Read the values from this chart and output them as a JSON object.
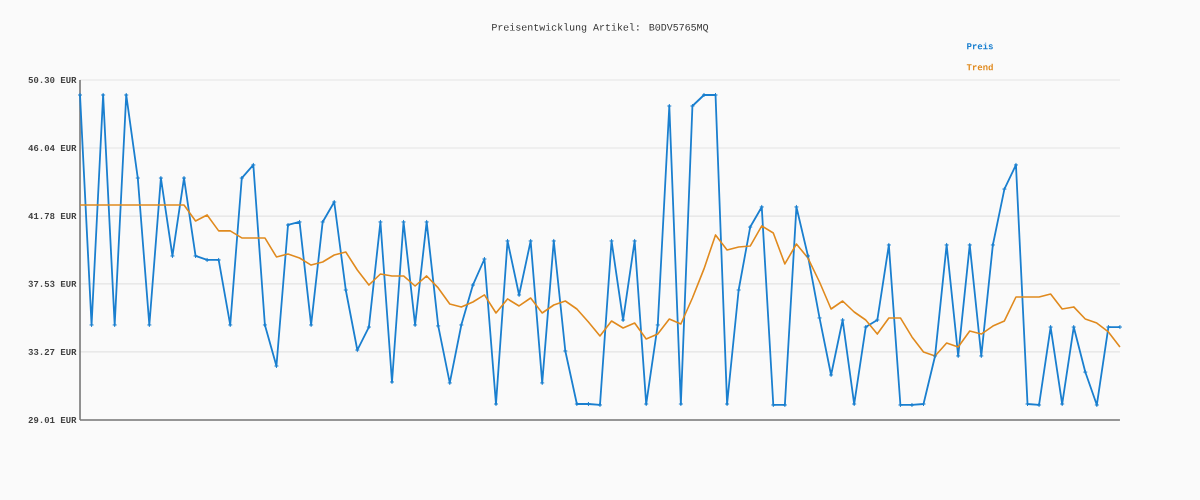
{
  "chart_data": {
    "type": "line",
    "title": "Preisentwicklung Artikel: B0DV5765MQ",
    "categories": [
      null,
      null,
      null,
      null,
      null,
      null,
      null,
      null,
      null,
      null,
      null,
      null,
      null,
      null,
      null,
      null,
      null,
      null,
      null,
      null,
      null,
      null,
      null,
      null,
      null,
      null,
      null,
      null,
      null,
      null,
      null,
      null,
      null,
      null,
      null,
      null,
      null,
      null,
      null,
      null,
      null,
      null,
      null,
      null,
      null,
      null,
      null,
      null,
      null,
      null,
      null,
      null,
      null,
      null,
      null,
      null,
      null,
      null,
      null,
      null,
      null,
      null,
      null,
      null,
      null,
      null,
      null,
      null,
      null,
      null,
      null,
      null,
      null,
      null,
      null,
      null,
      null,
      null,
      null,
      null,
      null,
      null,
      null,
      null,
      null,
      null,
      null,
      null,
      null,
      null,
      null
    ],
    "series": [
      {
        "name": "Preis",
        "color": "#1a7fcf",
        "marker": "cross",
        "values": [
          49.36,
          34.96,
          49.36,
          34.96,
          49.36,
          44.16,
          34.96,
          44.16,
          39.28,
          44.16,
          39.28,
          39.03,
          39.03,
          34.96,
          44.16,
          44.98,
          34.96,
          32.39,
          41.22,
          41.41,
          34.96,
          41.41,
          42.66,
          37.15,
          33.39,
          34.83,
          41.41,
          31.39,
          41.41,
          34.96,
          41.41,
          34.9,
          31.33,
          34.96,
          37.46,
          39.09,
          30.01,
          40.22,
          36.84,
          40.22,
          31.33,
          40.22,
          33.33,
          30.01,
          30.01,
          29.95,
          40.22,
          35.27,
          40.22,
          30.01,
          34.96,
          48.67,
          30.01,
          48.67,
          49.36,
          49.36,
          30.01,
          37.15,
          41.09,
          42.35,
          29.95,
          29.95,
          42.35,
          39.28,
          35.4,
          31.83,
          35.27,
          30.01,
          34.83,
          35.27,
          39.97,
          29.95,
          29.95,
          30.01,
          33.02,
          39.97,
          33.02,
          39.97,
          33.02,
          39.97,
          43.47,
          44.98,
          30.01,
          29.95,
          34.83,
          30.01,
          34.83,
          32.01,
          29.95,
          34.83,
          34.83
        ]
      },
      {
        "name": "Trend",
        "color": "#e08a1e",
        "marker": "none",
        "values": [
          42.47,
          42.47,
          42.47,
          42.47,
          42.47,
          42.47,
          42.47,
          42.47,
          42.47,
          42.47,
          41.47,
          41.85,
          40.85,
          40.85,
          40.41,
          40.41,
          40.41,
          39.22,
          39.4,
          39.15,
          38.71,
          38.9,
          39.34,
          39.53,
          38.4,
          37.46,
          38.15,
          38.03,
          38.03,
          37.4,
          38.03,
          37.28,
          36.27,
          36.09,
          36.4,
          36.84,
          35.71,
          36.59,
          36.15,
          36.65,
          35.71,
          36.21,
          36.46,
          35.96,
          35.15,
          34.27,
          35.21,
          34.77,
          35.08,
          34.08,
          34.39,
          35.33,
          35.02,
          36.65,
          38.47,
          40.6,
          39.65,
          39.84,
          39.9,
          41.16,
          40.72,
          38.78,
          40.03,
          39.15,
          37.65,
          35.96,
          36.46,
          35.77,
          35.27,
          34.39,
          35.4,
          35.4,
          34.21,
          33.27,
          33.02,
          33.83,
          33.58,
          34.58,
          34.39,
          34.89,
          35.21,
          36.71,
          36.71,
          36.71,
          36.9,
          35.96,
          36.09,
          35.33,
          35.08,
          34.52,
          33.58
        ]
      }
    ],
    "ylim": [
      29.01,
      50.3
    ],
    "yticks": [
      {
        "value": 29.01,
        "label": "29.01 EUR"
      },
      {
        "value": 33.27,
        "label": "33.27 EUR"
      },
      {
        "value": 37.53,
        "label": "37.53 EUR"
      },
      {
        "value": 41.78,
        "label": "41.78 EUR"
      },
      {
        "value": 46.04,
        "label": "46.04 EUR"
      },
      {
        "value": 50.3,
        "label": "50.30 EUR"
      }
    ],
    "grid": "y",
    "legend": "top right",
    "line_style": "solid",
    "tick_labels": "y"
  }
}
